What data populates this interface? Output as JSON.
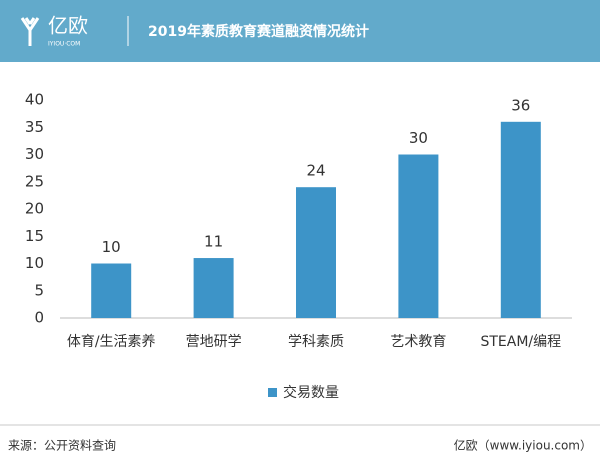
{
  "header": {
    "logo": "亿欧",
    "logo_sub": "IYIOU·COM"
  },
  "chart_data": {
    "type": "bar",
    "title": "2019年素质教育赛道融资情况统计",
    "categories": [
      "体育/生活素养",
      "营地研学",
      "学科素质",
      "艺术教育",
      "STEAM/编程"
    ],
    "series": [
      {
        "name": "交易数量",
        "color": "#3d94c8",
        "values": [
          10,
          11,
          24,
          30,
          36
        ]
      }
    ],
    "ylim": [
      0,
      40
    ],
    "yticks": [
      0,
      5,
      10,
      15,
      20,
      25,
      30,
      35,
      40
    ],
    "grid": false,
    "legend": "bottom"
  },
  "footer": {
    "source": "来源：公开资料查询",
    "site": "亿欧（www.iyiou.com）"
  }
}
